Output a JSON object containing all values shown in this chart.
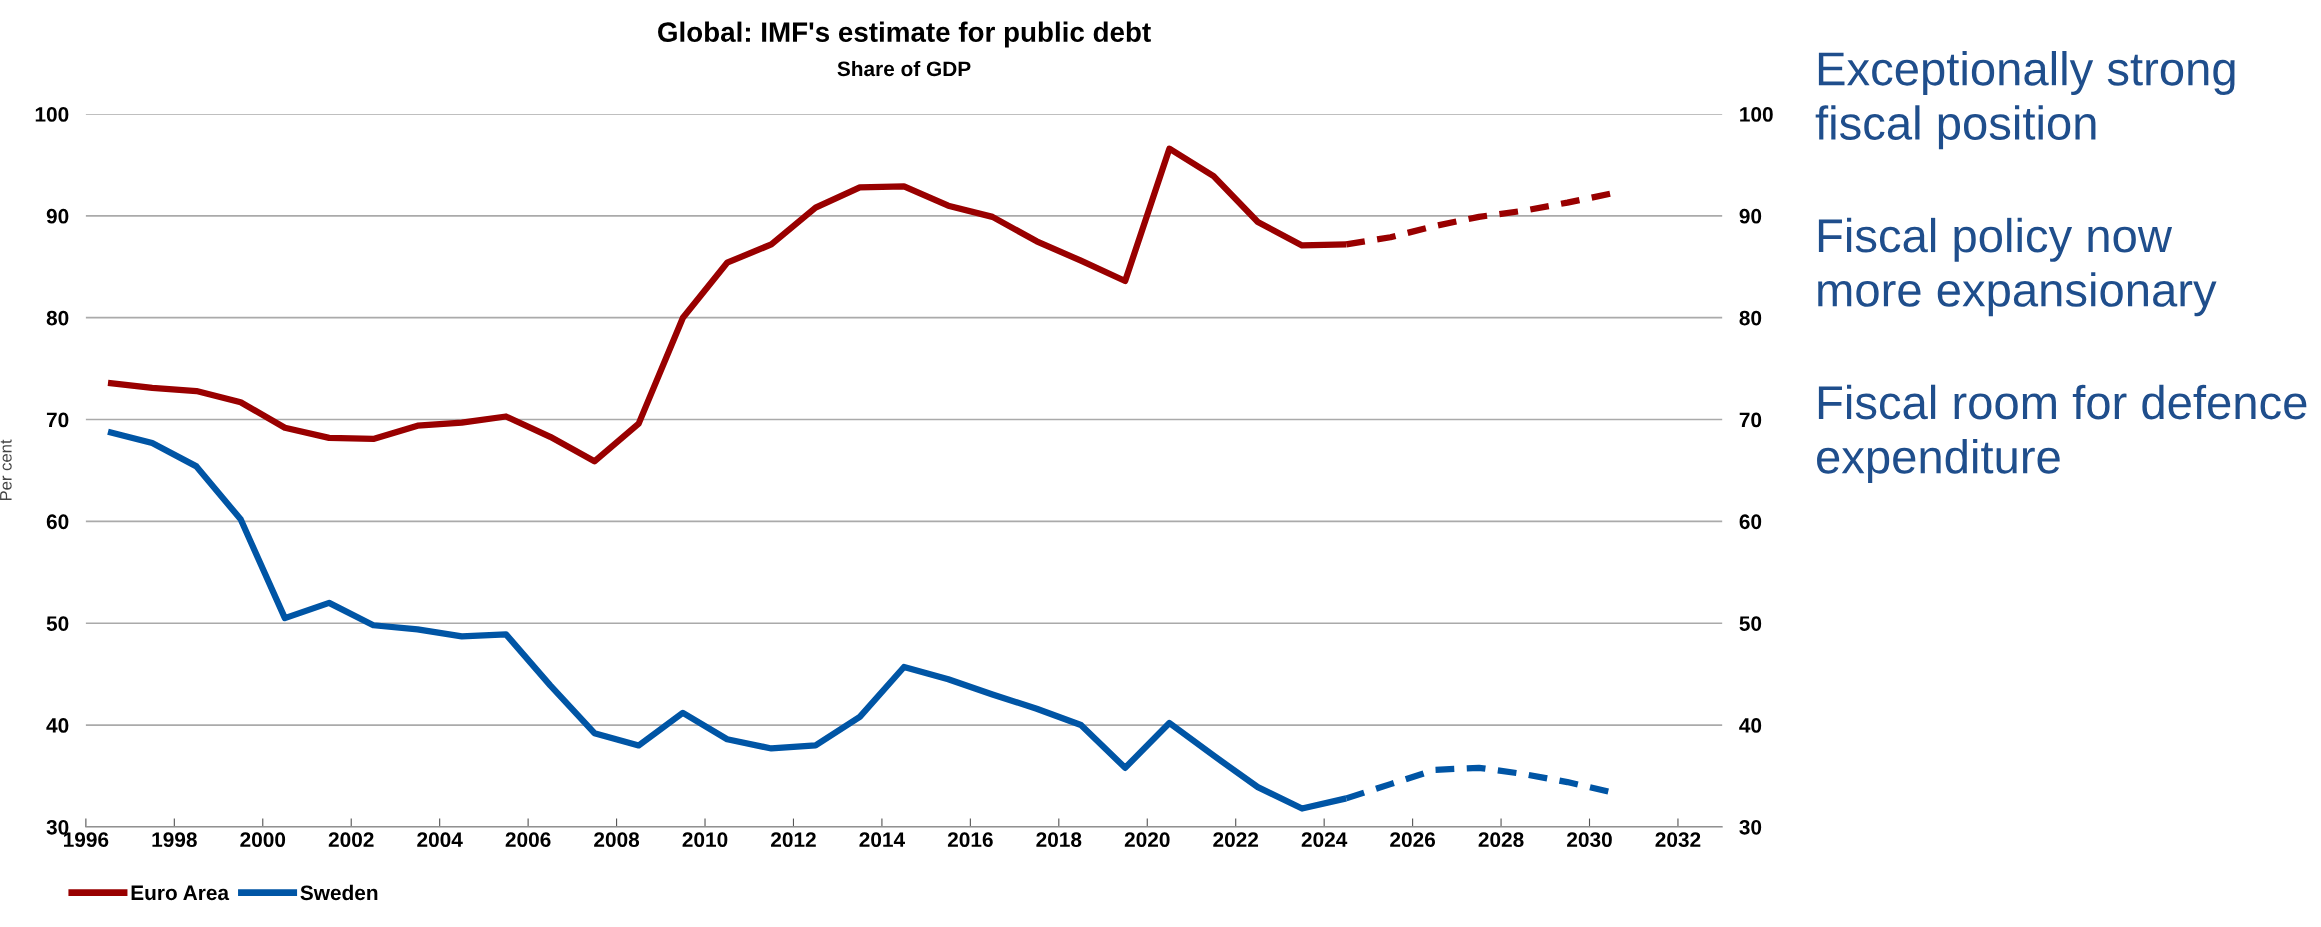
{
  "chart_data": {
    "type": "line",
    "title": "Global: IMF's estimate for public debt",
    "subtitle": "Share of GDP",
    "ylabel": "Per cent",
    "series": [
      {
        "name": "Euro Area",
        "color": "#990000",
        "line_style": "solid",
        "x": [
          1996.5,
          1997.5,
          1998.5,
          1999.5,
          2000.5,
          2001.5,
          2002.5,
          2003.5,
          2004.5,
          2005.5,
          2006.5,
          2007.5,
          2008.5,
          2009.5,
          2010.5,
          2011.5,
          2012.5,
          2013.5,
          2014.5,
          2015.5,
          2016.5,
          2017.5,
          2018.5,
          2019.5,
          2020.5,
          2021.5,
          2022.5,
          2023.5,
          2024.5
        ],
        "values": [
          73.6,
          73.1,
          72.8,
          71.7,
          69.2,
          68.2,
          68.1,
          69.4,
          69.7,
          70.3,
          68.3,
          65.9,
          69.6,
          80.0,
          85.4,
          87.2,
          90.8,
          92.8,
          92.9,
          91.0,
          89.9,
          87.5,
          85.6,
          83.6,
          96.6,
          93.9,
          89.4,
          87.1,
          87.2
        ]
      },
      {
        "color": "#990000",
        "line_style": "dashed",
        "x": [
          2024.5,
          2025.5,
          2026.5,
          2027.5,
          2028.5,
          2029.5,
          2030.5
        ],
        "values": [
          87.2,
          87.9,
          89.0,
          89.9,
          90.5,
          91.3,
          92.2
        ]
      },
      {
        "name": "Sweden",
        "color": "#0055a5",
        "line_style": "solid",
        "x": [
          1996.5,
          1997.5,
          1998.5,
          1999.5,
          2000.5,
          2001.5,
          2002.5,
          2003.5,
          2004.5,
          2005.5,
          2006.5,
          2007.5,
          2008.5,
          2009.5,
          2010.5,
          2011.5,
          2012.5,
          2013.5,
          2014.5,
          2015.5,
          2016.5,
          2017.5,
          2018.5,
          2019.5,
          2020.5,
          2021.5,
          2022.5,
          2023.5,
          2024.5
        ],
        "values": [
          68.8,
          67.7,
          65.4,
          60.2,
          50.5,
          52.0,
          49.8,
          49.4,
          48.7,
          48.9,
          43.9,
          39.2,
          38.0,
          41.2,
          38.6,
          37.7,
          38.0,
          40.8,
          45.7,
          44.5,
          43.0,
          41.6,
          40.0,
          35.8,
          40.2,
          37.0,
          33.9,
          31.8,
          32.8
        ]
      },
      {
        "color": "#0055a5",
        "line_style": "dashed",
        "x": [
          2024.5,
          2025.5,
          2026.5,
          2027.5,
          2028.5,
          2029.5,
          2030.5
        ],
        "values": [
          32.8,
          34.2,
          35.6,
          35.8,
          35.2,
          34.4,
          33.4
        ]
      }
    ],
    "xlim": [
      1996,
      2033
    ],
    "xticks": [
      1996,
      1998,
      2000,
      2002,
      2004,
      2006,
      2008,
      2010,
      2012,
      2014,
      2016,
      2018,
      2020,
      2022,
      2024,
      2026,
      2028,
      2030,
      2032
    ],
    "ylim": [
      30,
      100
    ],
    "yticks": [
      30,
      40,
      50,
      60,
      70,
      80,
      90,
      100
    ],
    "y2lim": [
      30,
      100
    ],
    "y2ticks": [
      30,
      40,
      50,
      60,
      70,
      80,
      90,
      100
    ],
    "grid": "y",
    "legend": "bottom left",
    "marker": "none",
    "annotations": [
      "Exceptionally strong\nfiscal position",
      "Fiscal policy now\nmore expansionary",
      "Fiscal room for defence\nexpenditure"
    ]
  }
}
